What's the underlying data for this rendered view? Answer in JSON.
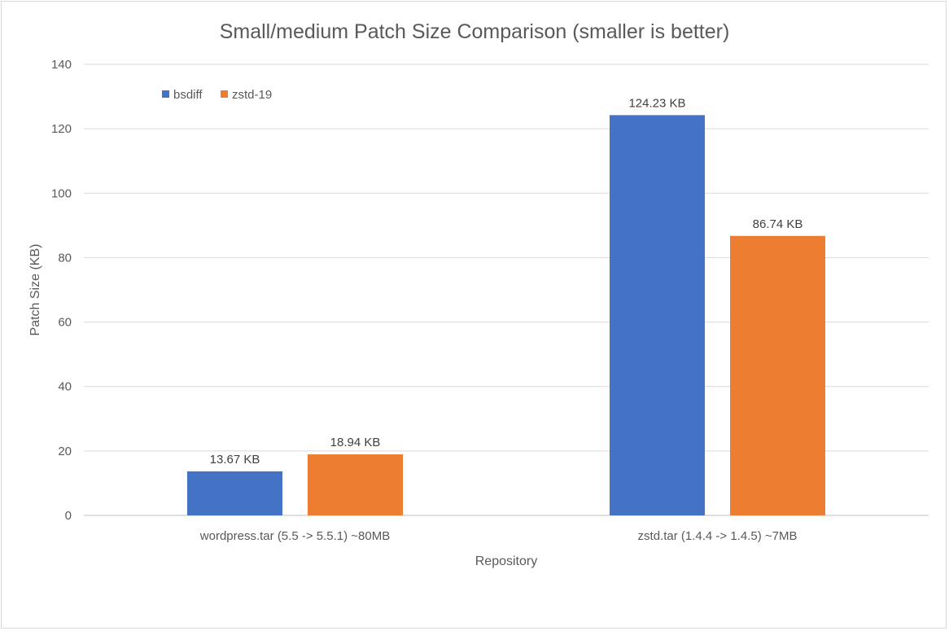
{
  "chart_data": {
    "type": "bar",
    "title": "Small/medium Patch Size Comparison (smaller is better)",
    "xlabel": "Repository",
    "ylabel": "Patch Size (KB)",
    "categories": [
      "wordpress.tar (5.5 -> 5.5.1) ~80MB",
      "zstd.tar (1.4.4 -> 1.4.5) ~7MB"
    ],
    "series": [
      {
        "name": "bsdiff",
        "values": [
          13.67,
          124.23
        ],
        "labels": [
          "13.67 KB",
          "124.23 KB"
        ],
        "color": "#4472c4"
      },
      {
        "name": "zstd-19",
        "values": [
          18.94,
          86.74
        ],
        "labels": [
          "18.94 KB",
          "86.74 KB"
        ],
        "color": "#ed7d31"
      }
    ],
    "ylim": [
      0,
      140
    ],
    "yticks": [
      0,
      20,
      40,
      60,
      80,
      100,
      120,
      140
    ],
    "ytick_labels": [
      "0",
      "20",
      "40",
      "60",
      "80",
      "100",
      "120",
      "140"
    ],
    "grid": true,
    "legend": "top-left"
  }
}
